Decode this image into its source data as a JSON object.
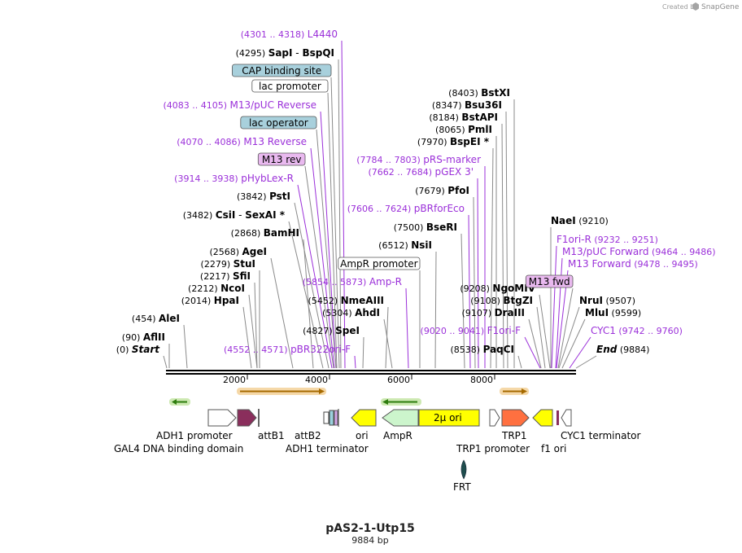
{
  "credit": {
    "created_by": "Created by",
    "brand": "SnapGene"
  },
  "plasmid": {
    "name": "pAS2-1-Utp15",
    "length": "9884 bp"
  },
  "axis": {
    "ticks": [
      "2000",
      "4000",
      "6000",
      "8000"
    ]
  },
  "colors": {
    "site": "#000000",
    "primer": "#9b30d9",
    "tag_blue": "#a8d0dc",
    "tag_purple": "#e9b9ef"
  },
  "labels": [
    {
      "coord": "(4301 .. 4318)",
      "name": "L4440",
      "kind": "primer"
    },
    {
      "coord": "(4295)",
      "name": "SapI",
      "extra": " - ",
      "name2": "BspQI",
      "kind": "site"
    },
    {
      "name": "CAP binding site",
      "kind": "tag",
      "tag": "blue"
    },
    {
      "name": "lac promoter",
      "kind": "tag",
      "tag": "white"
    },
    {
      "coord": "(4083 .. 4105)",
      "name": "M13/pUC Reverse",
      "kind": "primer"
    },
    {
      "name": "lac operator",
      "kind": "tag",
      "tag": "blue"
    },
    {
      "coord": "(4070 .. 4086)",
      "name": "M13 Reverse",
      "kind": "primer"
    },
    {
      "name": "M13 rev",
      "kind": "tag",
      "tag": "purple"
    },
    {
      "coord": "(3914 .. 3938)",
      "name": "pHybLex-R",
      "kind": "primer"
    },
    {
      "coord": "(3842)",
      "name": "PstI",
      "kind": "site"
    },
    {
      "coord": "(3482)",
      "name": "CsiI",
      "extra": " - ",
      "name2": "SexAI *",
      "kind": "site"
    },
    {
      "coord": "(2868)",
      "name": "BamHI",
      "kind": "site"
    },
    {
      "coord": "(2568)",
      "name": "AgeI",
      "kind": "site"
    },
    {
      "coord": "(2279)",
      "name": "StuI",
      "kind": "site"
    },
    {
      "coord": "(2217)",
      "name": "SfiI",
      "kind": "site"
    },
    {
      "coord": "(2212)",
      "name": "NcoI",
      "kind": "site"
    },
    {
      "coord": "(2014)",
      "name": "HpaI",
      "kind": "site"
    },
    {
      "coord": "(454)",
      "name": "AleI",
      "kind": "site"
    },
    {
      "coord": "(90)",
      "name": "AflII",
      "kind": "site"
    },
    {
      "coord": "(0)",
      "name": "Start",
      "kind": "end"
    },
    {
      "coord": "(4552 .. 4571)",
      "name": "pBR322ori-F",
      "kind": "primer"
    },
    {
      "coord": "(4827)",
      "name": "SpeI",
      "kind": "site"
    },
    {
      "coord": "(5304)",
      "name": "AhdI",
      "kind": "site"
    },
    {
      "coord": "(5452)",
      "name": "NmeAIII",
      "kind": "site"
    },
    {
      "coord": "(5854 .. 5873)",
      "name": "Amp-R",
      "kind": "primer"
    },
    {
      "name": "AmpR promoter",
      "kind": "tag",
      "tag": "white"
    },
    {
      "coord": "(6512)",
      "name": "NsiI",
      "kind": "site"
    },
    {
      "coord": "(7500)",
      "name": "BseRI",
      "kind": "site"
    },
    {
      "coord": "(7606 .. 7624)",
      "name": "pBRforEco",
      "kind": "primer"
    },
    {
      "coord": "(7679)",
      "name": "PfoI",
      "kind": "site"
    },
    {
      "coord": "(7662 .. 7684)",
      "name": "pGEX 3'",
      "kind": "primer"
    },
    {
      "coord": "(7784 .. 7803)",
      "name": "pRS-marker",
      "kind": "primer"
    },
    {
      "coord": "(7970)",
      "name": "BspEI *",
      "kind": "site"
    },
    {
      "coord": "(8065)",
      "name": "PmlI",
      "kind": "site"
    },
    {
      "coord": "(8184)",
      "name": "BstAPI",
      "kind": "site"
    },
    {
      "coord": "(8347)",
      "name": "Bsu36I",
      "kind": "site"
    },
    {
      "coord": "(8403)",
      "name": "BstXI",
      "kind": "site"
    },
    {
      "coord": "(9208)",
      "name": "NgoMIV",
      "kind": "site"
    },
    {
      "coord": "(9108)",
      "name": "BtgZI",
      "kind": "site"
    },
    {
      "coord": "(9107)",
      "name": "DraIII",
      "kind": "site"
    },
    {
      "coord": "(9020 .. 9041)",
      "name": "F1ori-F",
      "kind": "primer"
    },
    {
      "coord": "(8538)",
      "name": "PaqCI",
      "kind": "site"
    },
    {
      "name": "NaeI",
      "coord_after": "(9210)",
      "kind": "site_r"
    },
    {
      "name": "F1ori-R",
      "coord_after": "(9232 .. 9251)",
      "kind": "primer_r"
    },
    {
      "name": "M13/pUC Forward",
      "coord_after": "(9464 .. 9486)",
      "kind": "primer_r"
    },
    {
      "name": "M13 Forward",
      "coord_after": "(9478 .. 9495)",
      "kind": "primer_r"
    },
    {
      "name": "M13 fwd",
      "kind": "tag",
      "tag": "purple"
    },
    {
      "name": "NruI",
      "coord_after": "(9507)",
      "kind": "site_r"
    },
    {
      "name": "MluI",
      "coord_after": "(9599)",
      "kind": "site_r"
    },
    {
      "name": "CYC1",
      "coord_after": "(9742 .. 9760)",
      "kind": "primer_r"
    },
    {
      "name": "End",
      "coord_after": "(9884)",
      "kind": "end_r"
    }
  ],
  "features": [
    {
      "name": "ADH1 promoter"
    },
    {
      "name": "GAL4 DNA binding domain"
    },
    {
      "name": "attB1"
    },
    {
      "name": "attB2"
    },
    {
      "name": "ADH1 terminator"
    },
    {
      "name": "ori"
    },
    {
      "name": "AmpR"
    },
    {
      "name": "2μ ori"
    },
    {
      "name": "TRP1 promoter"
    },
    {
      "name": "TRP1"
    },
    {
      "name": "f1 ori"
    },
    {
      "name": "CYC1 terminator"
    },
    {
      "name": "FRT"
    }
  ]
}
